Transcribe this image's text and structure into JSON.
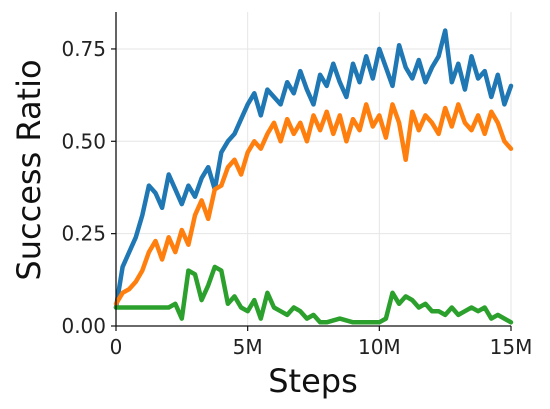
{
  "chart_data": {
    "type": "line",
    "title": "",
    "xlabel": "Steps",
    "ylabel": "Success Ratio",
    "xlim": [
      0,
      15
    ],
    "ylim": [
      0,
      0.85
    ],
    "x_ticks": [
      0,
      5,
      10,
      15
    ],
    "x_tick_labels": [
      "0",
      "5M",
      "10M",
      "15M"
    ],
    "y_ticks": [
      0,
      0.25,
      0.5,
      0.75
    ],
    "y_tick_labels": [
      "0.00",
      "0.25",
      "0.50",
      "0.75"
    ],
    "grid": true,
    "legend": "none",
    "series": [
      {
        "color": "#1f77b4",
        "x": [
          0,
          0.25,
          0.5,
          0.75,
          1,
          1.25,
          1.5,
          1.75,
          2,
          2.25,
          2.5,
          2.75,
          3,
          3.25,
          3.5,
          3.75,
          4,
          4.25,
          4.5,
          4.75,
          5,
          5.25,
          5.5,
          5.75,
          6,
          6.25,
          6.5,
          6.75,
          7,
          7.25,
          7.5,
          7.75,
          8,
          8.25,
          8.5,
          8.75,
          9,
          9.25,
          9.5,
          9.75,
          10,
          10.25,
          10.5,
          10.75,
          11,
          11.25,
          11.5,
          11.75,
          12,
          12.25,
          12.5,
          12.75,
          13,
          13.25,
          13.5,
          13.75,
          14,
          14.25,
          14.5,
          14.75,
          15
        ],
        "y": [
          0.05,
          0.16,
          0.2,
          0.24,
          0.3,
          0.38,
          0.36,
          0.32,
          0.41,
          0.37,
          0.33,
          0.38,
          0.35,
          0.4,
          0.43,
          0.37,
          0.47,
          0.5,
          0.52,
          0.56,
          0.6,
          0.63,
          0.57,
          0.64,
          0.62,
          0.6,
          0.66,
          0.63,
          0.69,
          0.64,
          0.6,
          0.68,
          0.65,
          0.71,
          0.66,
          0.62,
          0.71,
          0.66,
          0.73,
          0.67,
          0.75,
          0.7,
          0.65,
          0.76,
          0.7,
          0.67,
          0.72,
          0.66,
          0.7,
          0.73,
          0.8,
          0.66,
          0.71,
          0.64,
          0.73,
          0.67,
          0.69,
          0.62,
          0.68,
          0.6,
          0.65
        ]
      },
      {
        "color": "#ff7f0e",
        "x": [
          0,
          0.25,
          0.5,
          0.75,
          1,
          1.25,
          1.5,
          1.75,
          2,
          2.25,
          2.5,
          2.75,
          3,
          3.25,
          3.5,
          3.75,
          4,
          4.25,
          4.5,
          4.75,
          5,
          5.25,
          5.5,
          5.75,
          6,
          6.25,
          6.5,
          6.75,
          7,
          7.25,
          7.5,
          7.75,
          8,
          8.25,
          8.5,
          8.75,
          9,
          9.25,
          9.5,
          9.75,
          10,
          10.25,
          10.5,
          10.75,
          11,
          11.25,
          11.5,
          11.75,
          12,
          12.25,
          12.5,
          12.75,
          13,
          13.25,
          13.5,
          13.75,
          14,
          14.25,
          14.5,
          14.75,
          15
        ],
        "y": [
          0.06,
          0.09,
          0.1,
          0.12,
          0.15,
          0.2,
          0.23,
          0.18,
          0.24,
          0.2,
          0.26,
          0.22,
          0.3,
          0.34,
          0.29,
          0.37,
          0.38,
          0.43,
          0.45,
          0.41,
          0.47,
          0.5,
          0.48,
          0.52,
          0.55,
          0.5,
          0.56,
          0.52,
          0.55,
          0.5,
          0.57,
          0.53,
          0.58,
          0.52,
          0.57,
          0.5,
          0.56,
          0.53,
          0.6,
          0.54,
          0.57,
          0.51,
          0.6,
          0.55,
          0.45,
          0.58,
          0.53,
          0.57,
          0.55,
          0.52,
          0.59,
          0.54,
          0.6,
          0.55,
          0.53,
          0.57,
          0.52,
          0.58,
          0.55,
          0.5,
          0.48
        ]
      },
      {
        "color": "#2ca02c",
        "x": [
          0,
          0.5,
          1,
          1.5,
          2,
          2.25,
          2.5,
          2.75,
          3,
          3.25,
          3.5,
          3.75,
          4,
          4.25,
          4.5,
          4.75,
          5,
          5.25,
          5.5,
          5.75,
          6,
          6.25,
          6.5,
          6.75,
          7,
          7.25,
          7.5,
          7.75,
          8,
          8.5,
          9,
          9.5,
          10,
          10.25,
          10.5,
          10.75,
          11,
          11.25,
          11.5,
          11.75,
          12,
          12.25,
          12.5,
          12.75,
          13,
          13.25,
          13.5,
          13.75,
          14,
          14.25,
          14.5,
          14.75,
          15
        ],
        "y": [
          0.05,
          0.05,
          0.05,
          0.05,
          0.05,
          0.06,
          0.02,
          0.15,
          0.14,
          0.07,
          0.11,
          0.16,
          0.15,
          0.06,
          0.08,
          0.05,
          0.04,
          0.07,
          0.02,
          0.09,
          0.05,
          0.04,
          0.03,
          0.05,
          0.04,
          0.02,
          0.03,
          0.01,
          0.01,
          0.02,
          0.01,
          0.01,
          0.01,
          0.02,
          0.09,
          0.06,
          0.08,
          0.07,
          0.05,
          0.06,
          0.04,
          0.04,
          0.03,
          0.05,
          0.03,
          0.04,
          0.05,
          0.04,
          0.05,
          0.02,
          0.03,
          0.02,
          0.01
        ]
      }
    ]
  }
}
